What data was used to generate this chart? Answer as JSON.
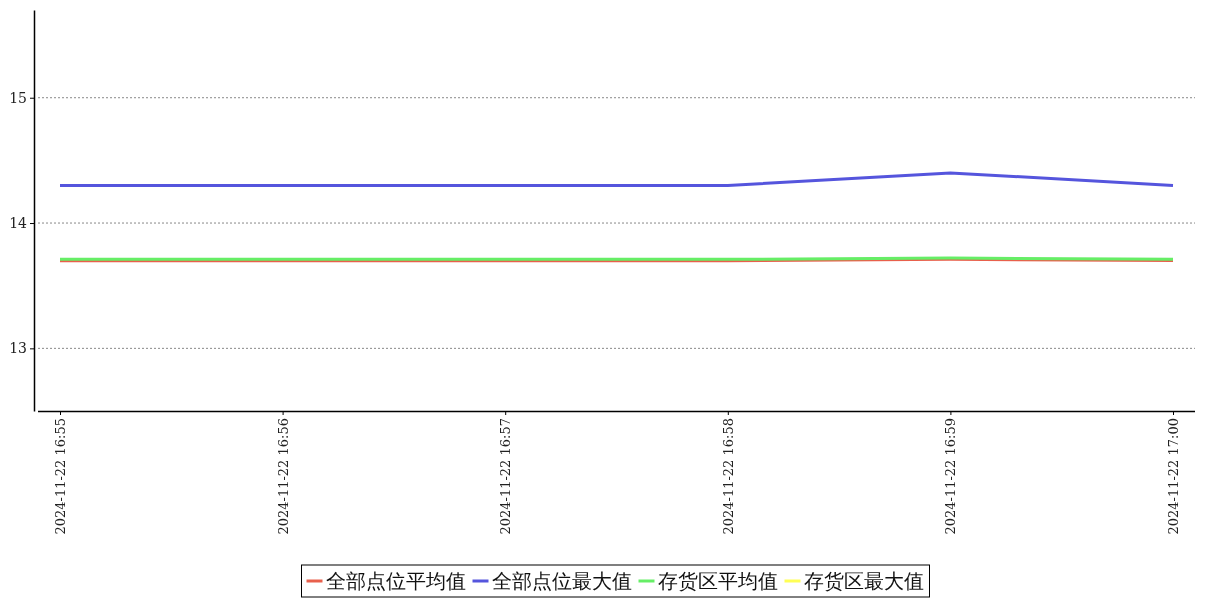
{
  "chart_data": {
    "type": "line",
    "categories": [
      "2024-11-22 16:55",
      "2024-11-22 16:56",
      "2024-11-22 16:57",
      "2024-11-22 16:58",
      "2024-11-22 16:59",
      "2024-11-22 17:00"
    ],
    "series": [
      {
        "name": "全部点位平均值",
        "color": "#e8604c",
        "values": [
          13.7,
          13.7,
          13.7,
          13.7,
          13.71,
          13.7
        ]
      },
      {
        "name": "全部点位最大值",
        "color": "#5555dd",
        "values": [
          14.3,
          14.3,
          14.3,
          14.3,
          14.4,
          14.3
        ]
      },
      {
        "name": "存货区平均值",
        "color": "#66ee66",
        "values": [
          13.71,
          13.71,
          13.71,
          13.71,
          13.72,
          13.71
        ]
      },
      {
        "name": "存货区最大值",
        "color": "#ffff55",
        "values": [
          null,
          null,
          null,
          null,
          null,
          null
        ]
      }
    ],
    "ylim": [
      12.5,
      15.7
    ],
    "yticks": [
      13,
      14,
      15
    ],
    "grid": "y",
    "legend": "bottom",
    "marker": "none",
    "line_style": "solid"
  }
}
